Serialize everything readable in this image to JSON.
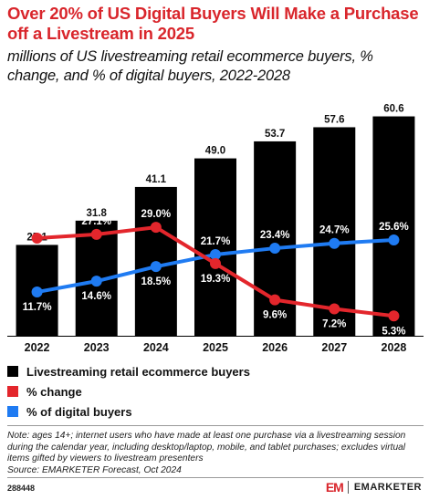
{
  "title": "Over 20% of US Digital Buyers Will Make a Purchase off a Livestream in 2025",
  "subtitle": "millions of US livestreaming retail ecommerce buyers, % change, and % of digital buyers, 2022-2028",
  "chart_data": {
    "type": "bar",
    "categories": [
      "2022",
      "2023",
      "2024",
      "2025",
      "2026",
      "2027",
      "2028"
    ],
    "ylim": [
      0,
      62
    ],
    "grid": false,
    "legend_position": "bottom-left",
    "series": [
      {
        "name": "Livestreaming retail ecommerce buyers",
        "kind": "bar",
        "color": "#000000",
        "values": [
          25.1,
          31.8,
          41.1,
          49.0,
          53.7,
          57.6,
          60.6
        ],
        "labels": [
          "25.1",
          "31.8",
          "41.1",
          "49.0",
          "53.7",
          "57.6",
          "60.6"
        ]
      },
      {
        "name": "% change",
        "kind": "line",
        "color": "#e3262c",
        "values": [
          26.1,
          27.1,
          29.0,
          19.3,
          9.6,
          7.2,
          5.3
        ],
        "labels": [
          "26.1%",
          "27.1%",
          "29.0%",
          "19.3%",
          "9.6%",
          "7.2%",
          "5.3%"
        ]
      },
      {
        "name": "% of digital buyers",
        "kind": "line",
        "color": "#1f7bf2",
        "values": [
          11.7,
          14.6,
          18.5,
          21.7,
          23.4,
          24.7,
          25.6
        ],
        "labels": [
          "11.7%",
          "14.6%",
          "18.5%",
          "21.7%",
          "23.4%",
          "24.7%",
          "25.6%"
        ]
      }
    ]
  },
  "note": "Note: ages 14+; internet users who have made at least one purchase via a livestreaming session during the calendar year, including desktop/laptop, mobile, and tablet purchases; excludes virtual items gifted by viewers to livestream presenters",
  "source": "Source: EMARKETER Forecast, Oct 2024",
  "footer_id": "288448",
  "brand": {
    "mark": "EM",
    "name": "EMARKETER",
    "color": "#d9262c"
  }
}
